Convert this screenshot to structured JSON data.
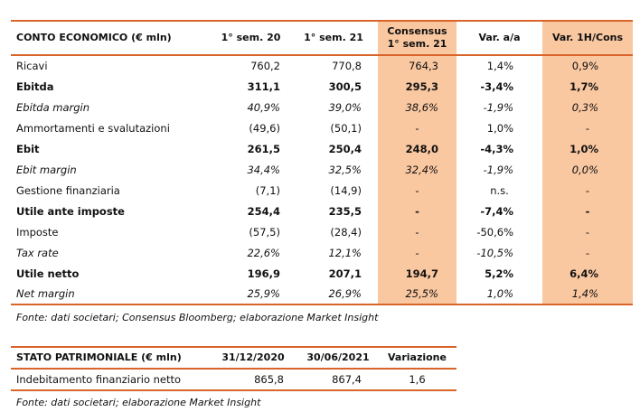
{
  "income_statement": {
    "header": [
      "CONTO ECONOMICO (€ mln)",
      "1° sem. 20",
      "1° sem. 21",
      "Consensus\n1° sem. 21",
      "Var. a/a",
      "Var. 1H/Cons"
    ],
    "rows": [
      [
        "Ricavi",
        "760,2",
        "770,8",
        "764,3",
        "1,4%",
        "0,9%"
      ],
      [
        "Ebitda",
        "311,1",
        "300,5",
        "295,3",
        "-3,4%",
        "1,7%"
      ],
      [
        "Ebitda margin",
        "40,9%",
        "39,0%",
        "38,6%",
        "-1,9%",
        "0,3%"
      ],
      [
        "Ammortamenti e svalutazioni",
        "(49,6)",
        "(50,1)",
        "-",
        "1,0%",
        "-"
      ],
      [
        "Ebit",
        "261,5",
        "250,4",
        "248,0",
        "-4,3%",
        "1,0%"
      ],
      [
        "Ebit margin",
        "34,4%",
        "32,5%",
        "32,4%",
        "-1,9%",
        "0,0%"
      ],
      [
        "Gestione finanziaria",
        "(7,1)",
        "(14,9)",
        "-",
        "n.s.",
        "-"
      ],
      [
        "Utile ante imposte",
        "254,4",
        "235,5",
        "-",
        "-7,4%",
        "-"
      ],
      [
        "Imposte",
        "(57,5)",
        "(28,4)",
        "-",
        "-50,6%",
        "-"
      ],
      [
        "Tax rate",
        "22,6%",
        "12,1%",
        "-",
        "-10,5%",
        "-"
      ],
      [
        "Utile netto",
        "196,9",
        "207,1",
        "194,7",
        "5,2%",
        "6,4%"
      ],
      [
        "Net margin",
        "25,9%",
        "26,9%",
        "25,5%",
        "1,0%",
        "1,4%"
      ]
    ],
    "source": "Fonte: dati societari; Consensus Bloomberg; elaborazione Market Insight"
  },
  "balance_sheet": {
    "header": [
      "STATO PATRIMONIALE (€ mln)",
      "31/12/2020",
      "30/06/2021",
      "Variazione"
    ],
    "rows": [
      [
        "Indebitamento finanziario netto",
        "865,8",
        "867,4",
        "1,6"
      ]
    ],
    "source": "Fonte: dati societari; elaborazione Market Insight"
  }
}
